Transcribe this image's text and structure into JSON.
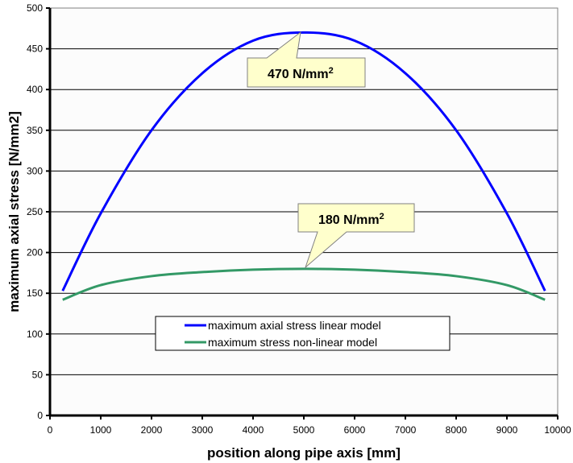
{
  "chart_data": {
    "type": "line",
    "title": "",
    "xlabel": "position along pipe axis [mm]",
    "ylabel": "maximum axial stress [N/mm2]",
    "xlim": [
      0,
      10000
    ],
    "ylim": [
      0,
      500
    ],
    "x_ticks": [
      "0",
      "1000",
      "2000",
      "3000",
      "4000",
      "5000",
      "6000",
      "7000",
      "8000",
      "9000",
      "10000"
    ],
    "y_ticks": [
      "0",
      "50",
      "100",
      "150",
      "200",
      "250",
      "300",
      "350",
      "400",
      "450",
      "500"
    ],
    "grid": {
      "horizontal": true,
      "vertical": false
    },
    "legend_position": "inside-center-bottom",
    "x": [
      250,
      1000,
      2000,
      3000,
      4000,
      5000,
      6000,
      7000,
      8000,
      9000,
      9750
    ],
    "series": [
      {
        "name": "maximum axial stress linear model",
        "color": "#0000ff",
        "values": [
          153,
          248,
          350,
          420,
          460,
          470,
          460,
          420,
          350,
          248,
          153
        ]
      },
      {
        "name": "maximum stress non-linear model",
        "color": "#339966",
        "values": [
          142,
          160,
          171,
          176,
          179,
          180,
          179,
          176,
          171,
          160,
          142
        ]
      }
    ],
    "annotations": [
      {
        "text": "470 N/mm",
        "sup": "2",
        "x": 5000,
        "y": 470
      },
      {
        "text": "180 N/mm",
        "sup": "2",
        "x": 5000,
        "y": 180
      }
    ]
  },
  "colors": {
    "plot_background": "#fcfcfc",
    "gridline": "#000000",
    "callout_fill": "#ffffcc",
    "callout_border": "#808080",
    "linear": "#0000ff",
    "nonlinear": "#339966"
  }
}
